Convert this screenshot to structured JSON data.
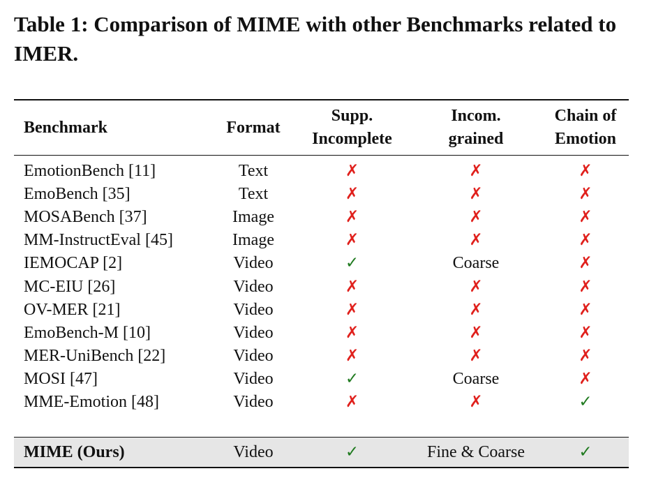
{
  "caption": "Table 1: Comparison of MIME with other Benchmarks related to IMER.",
  "colors": {
    "cross": "#e0201c",
    "check": "#1f7a1f",
    "highlight_row": "#e6e6e6"
  },
  "symbols": {
    "cross": "✗",
    "check": "✓"
  },
  "headers": {
    "benchmark": "Benchmark",
    "format": "Format",
    "supp_line1": "Supp.",
    "supp_line2": "Incomplete",
    "grained_line1": "Incom.",
    "grained_line2": "grained",
    "chain_line1": "Chain of",
    "chain_line2": "Emotion"
  },
  "rows": [
    {
      "benchmark": "EmotionBench [11]",
      "format": "Text",
      "supp": "cross",
      "grained": "cross",
      "chain": "cross"
    },
    {
      "benchmark": "EmoBench [35]",
      "format": "Text",
      "supp": "cross",
      "grained": "cross",
      "chain": "cross"
    },
    {
      "benchmark": "MOSABench [37]",
      "format": "Image",
      "supp": "cross",
      "grained": "cross",
      "chain": "cross"
    },
    {
      "benchmark": "MM-InstructEval [45]",
      "format": "Image",
      "supp": "cross",
      "grained": "cross",
      "chain": "cross"
    },
    {
      "benchmark": "IEMOCAP [2]",
      "format": "Video",
      "supp": "check",
      "grained": "Coarse",
      "chain": "cross"
    },
    {
      "benchmark": "MC-EIU [26]",
      "format": "Video",
      "supp": "cross",
      "grained": "cross",
      "chain": "cross"
    },
    {
      "benchmark": "OV-MER [21]",
      "format": "Video",
      "supp": "cross",
      "grained": "cross",
      "chain": "cross"
    },
    {
      "benchmark": "EmoBench-M [10]",
      "format": "Video",
      "supp": "cross",
      "grained": "cross",
      "chain": "cross"
    },
    {
      "benchmark": "MER-UniBench [22]",
      "format": "Video",
      "supp": "cross",
      "grained": "cross",
      "chain": "cross"
    },
    {
      "benchmark": "MOSI [47]",
      "format": "Video",
      "supp": "check",
      "grained": "Coarse",
      "chain": "cross"
    },
    {
      "benchmark": "MME-Emotion [48]",
      "format": "Video",
      "supp": "cross",
      "grained": "cross",
      "chain": "check"
    }
  ],
  "ours": {
    "benchmark": "MIME (Ours)",
    "format": "Video",
    "supp": "check",
    "grained": "Fine & Coarse",
    "chain": "check"
  }
}
